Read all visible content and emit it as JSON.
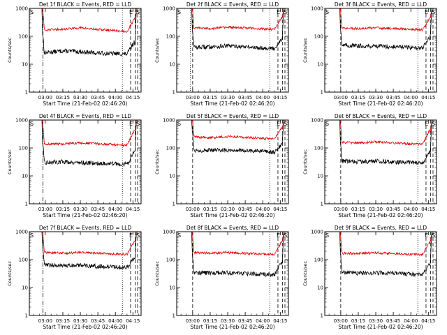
{
  "figure": {
    "ylabel": "Counts/sec",
    "xlabel": "Start Time (21-Feb-02 02:46:20)",
    "x_tick_labels": [
      "03:00",
      "03:15",
      "03:30",
      "03:45",
      "04:00",
      "04:15"
    ],
    "y_tick_labels": [
      "1",
      "10",
      "100",
      "1000"
    ],
    "corner_labels": {
      "left": "S",
      "right_1": "E",
      "right_2": "S"
    },
    "series_colors": {
      "events": "#000000",
      "lld": "#e00000"
    }
  },
  "chart_data": [
    {
      "type": "line",
      "title": "Det 1f BLACK = Events, RED = LLD",
      "xlim": [
        "02:46:20",
        "04:22:00"
      ],
      "ylim": [
        1,
        1000
      ],
      "y_scale": "log",
      "x": [
        "02:55",
        "03:00",
        "03:15",
        "03:30",
        "03:45",
        "04:00",
        "04:10",
        "04:16"
      ],
      "series": [
        {
          "values": [
            30,
            26,
            30,
            28,
            25,
            24,
            23,
            60
          ]
        },
        {
          "values": [
            220,
            170,
            180,
            200,
            175,
            160,
            150,
            400
          ]
        }
      ],
      "markers": {
        "dash_dot": [
          "02:58"
        ],
        "dotted": [
          "04:06"
        ],
        "dashed": [
          "04:13",
          "04:17",
          "04:19"
        ]
      }
    },
    {
      "type": "line",
      "title": "Det 2f BLACK = Events, RED = LLD",
      "xlim": [
        "02:46:20",
        "04:22:00"
      ],
      "ylim": [
        1,
        1000
      ],
      "y_scale": "log",
      "x": [
        "02:55",
        "03:00",
        "03:15",
        "03:30",
        "03:45",
        "04:00",
        "04:10",
        "04:16"
      ],
      "series": [
        {
          "values": [
            45,
            40,
            42,
            45,
            42,
            38,
            36,
            80
          ]
        },
        {
          "values": [
            250,
            200,
            190,
            210,
            200,
            185,
            180,
            450
          ]
        }
      ],
      "markers": {
        "dash_dot": [],
        "dotted": [
          "02:58",
          "04:06"
        ],
        "dashed": [
          "03:00",
          "04:13",
          "04:17",
          "04:19"
        ]
      }
    },
    {
      "type": "line",
      "title": "Det 3f BLACK = Events, RED = LLD",
      "xlim": [
        "02:46:20",
        "04:22:00"
      ],
      "ylim": [
        1,
        1000
      ],
      "y_scale": "log",
      "x": [
        "02:55",
        "03:00",
        "03:15",
        "03:30",
        "03:45",
        "04:00",
        "04:10",
        "04:16"
      ],
      "series": [
        {
          "values": [
            55,
            48,
            45,
            45,
            42,
            40,
            38,
            90
          ]
        },
        {
          "values": [
            260,
            200,
            190,
            200,
            190,
            180,
            170,
            450
          ]
        }
      ],
      "markers": {
        "dash_dot": [],
        "dotted": [
          "04:06"
        ],
        "dashed": [
          "03:00",
          "04:13",
          "04:17",
          "04:19"
        ]
      }
    },
    {
      "type": "line",
      "title": "Det 4f BLACK = Events, RED = LLD",
      "xlim": [
        "02:46:20",
        "04:22:00"
      ],
      "ylim": [
        1,
        1000
      ],
      "y_scale": "log",
      "x": [
        "02:55",
        "03:00",
        "03:15",
        "03:30",
        "03:45",
        "04:00",
        "04:10",
        "04:16"
      ],
      "series": [
        {
          "values": [
            35,
            30,
            32,
            30,
            28,
            27,
            26,
            70
          ]
        },
        {
          "values": [
            200,
            140,
            140,
            150,
            140,
            130,
            125,
            400
          ]
        }
      ],
      "markers": {
        "dash_dot": [
          "02:58"
        ],
        "dotted": [
          "04:06"
        ],
        "dashed": [
          "04:13",
          "04:17",
          "04:19"
        ]
      }
    },
    {
      "type": "line",
      "title": "Det 5f BLACK = Events, RED = LLD",
      "xlim": [
        "02:46:20",
        "04:22:00"
      ],
      "ylim": [
        1,
        1000
      ],
      "y_scale": "log",
      "x": [
        "02:55",
        "03:00",
        "03:15",
        "03:30",
        "03:45",
        "04:00",
        "04:10",
        "04:16"
      ],
      "series": [
        {
          "values": [
            95,
            85,
            80,
            85,
            80,
            75,
            70,
            130
          ]
        },
        {
          "values": [
            300,
            250,
            230,
            260,
            240,
            220,
            210,
            500
          ]
        }
      ],
      "markers": {
        "dash_dot": [],
        "dotted": [
          "04:06"
        ],
        "dashed": [
          "03:00",
          "04:13",
          "04:17",
          "04:19"
        ]
      }
    },
    {
      "type": "line",
      "title": "Det 6f BLACK = Events, RED = LLD",
      "xlim": [
        "02:46:20",
        "04:22:00"
      ],
      "ylim": [
        1,
        1000
      ],
      "y_scale": "log",
      "x": [
        "02:55",
        "03:00",
        "03:15",
        "03:30",
        "03:45",
        "04:00",
        "04:10",
        "04:16"
      ],
      "series": [
        {
          "values": [
            40,
            34,
            32,
            34,
            32,
            30,
            28,
            70
          ]
        },
        {
          "values": [
            220,
            160,
            150,
            165,
            150,
            140,
            135,
            420
          ]
        }
      ],
      "markers": {
        "dash_dot": [],
        "dotted": [
          "04:06"
        ],
        "dashed": [
          "03:00",
          "04:13",
          "04:17",
          "04:19"
        ]
      }
    },
    {
      "type": "line",
      "title": "Det 7f BLACK = Events, RED = LLD",
      "xlim": [
        "02:46:20",
        "04:22:00"
      ],
      "ylim": [
        1,
        1000
      ],
      "y_scale": "log",
      "x": [
        "02:55",
        "03:00",
        "03:15",
        "03:30",
        "03:45",
        "04:00",
        "04:10",
        "04:16"
      ],
      "series": [
        {
          "values": [
            75,
            65,
            60,
            62,
            58,
            55,
            52,
            110
          ]
        },
        {
          "values": [
            250,
            180,
            170,
            180,
            170,
            160,
            155,
            450
          ]
        }
      ],
      "markers": {
        "dash_dot": [
          "02:58"
        ],
        "dotted": [
          "04:06"
        ],
        "dashed": [
          "04:13",
          "04:17",
          "04:19"
        ]
      }
    },
    {
      "type": "line",
      "title": "Det 8f BLACK = Events, RED = LLD",
      "xlim": [
        "02:46:20",
        "04:22:00"
      ],
      "ylim": [
        1,
        1000
      ],
      "y_scale": "log",
      "x": [
        "02:55",
        "03:00",
        "03:15",
        "03:30",
        "03:45",
        "04:00",
        "04:10",
        "04:16"
      ],
      "series": [
        {
          "values": [
            40,
            35,
            33,
            34,
            32,
            30,
            29,
            75
          ]
        },
        {
          "values": [
            240,
            180,
            170,
            180,
            170,
            160,
            155,
            430
          ]
        }
      ],
      "markers": {
        "dash_dot": [],
        "dotted": [
          "04:06"
        ],
        "dashed": [
          "03:00",
          "04:13",
          "04:17",
          "04:19"
        ]
      }
    },
    {
      "type": "line",
      "title": "Det 9f BLACK = Events, RED = LLD",
      "xlim": [
        "02:46:20",
        "04:22:00"
      ],
      "ylim": [
        1,
        1000
      ],
      "y_scale": "log",
      "x": [
        "02:55",
        "03:00",
        "03:15",
        "03:30",
        "03:45",
        "04:00",
        "04:10",
        "04:16"
      ],
      "series": [
        {
          "values": [
            40,
            35,
            33,
            34,
            32,
            30,
            28,
            70
          ]
        },
        {
          "values": [
            230,
            170,
            165,
            175,
            165,
            155,
            150,
            420
          ]
        }
      ],
      "markers": {
        "dash_dot": [],
        "dotted": [
          "04:06"
        ],
        "dashed": [
          "03:00",
          "04:13",
          "04:17",
          "04:19"
        ]
      }
    }
  ]
}
